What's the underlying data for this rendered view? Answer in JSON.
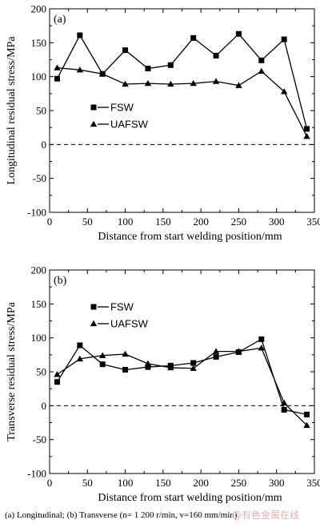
{
  "chart_data": [
    {
      "type": "line",
      "panel_label": "(a)",
      "ylabel": "Longitudinal residual stress/MPa",
      "xlabel": "Distance from start welding position/mm",
      "xlim": [
        0,
        350
      ],
      "ylim": [
        -100,
        200
      ],
      "xticks": [
        "0",
        "50",
        "100",
        "150",
        "200",
        "250",
        "300",
        "350"
      ],
      "yticks": [
        "200",
        "150",
        "100",
        "50",
        "0",
        "-50",
        "-100"
      ],
      "zero_line": "dashed",
      "legend": "upper-left",
      "series": [
        {
          "name": "FSW",
          "marker": "square",
          "x": [
            10,
            40,
            70,
            100,
            130,
            160,
            190,
            220,
            250,
            280,
            310,
            340
          ],
          "y": [
            97,
            161,
            104,
            139,
            112,
            117,
            157,
            131,
            163,
            124,
            155,
            23
          ]
        },
        {
          "name": "UAFSW",
          "marker": "triangle",
          "x": [
            10,
            40,
            70,
            100,
            130,
            160,
            190,
            220,
            250,
            280,
            310,
            340
          ],
          "y": [
            113,
            110,
            104,
            89,
            90,
            89,
            90,
            93,
            87,
            108,
            78,
            12
          ]
        }
      ]
    },
    {
      "type": "line",
      "panel_label": "(b)",
      "ylabel": "Transverse residual stress/MPa",
      "xlabel": "Distance from start welding position/mm",
      "xlim": [
        0,
        350
      ],
      "ylim": [
        -100,
        200
      ],
      "xticks": [
        "0",
        "50",
        "100",
        "150",
        "200",
        "250",
        "300",
        "350"
      ],
      "yticks": [
        "200",
        "150",
        "100",
        "50",
        "0",
        "-50",
        "-100"
      ],
      "zero_line": "dashed",
      "legend": "upper-left",
      "series": [
        {
          "name": "FSW",
          "marker": "square",
          "x": [
            10,
            40,
            70,
            100,
            130,
            160,
            190,
            220,
            250,
            280,
            310,
            340
          ],
          "y": [
            35,
            89,
            61,
            53,
            57,
            59,
            63,
            72,
            79,
            98,
            -6,
            -13
          ]
        },
        {
          "name": "UAFSW",
          "marker": "triangle",
          "x": [
            10,
            40,
            70,
            100,
            130,
            160,
            190,
            220,
            250,
            280,
            310,
            340
          ],
          "y": [
            46,
            69,
            74,
            76,
            62,
            56,
            55,
            80,
            80,
            85,
            4,
            -29
          ]
        }
      ]
    }
  ],
  "caption": "(a) Longitudinal; (b) Transverse (n= 1 200 r/min, v=160 mm/min)",
  "watermark": "@有色金属在线"
}
